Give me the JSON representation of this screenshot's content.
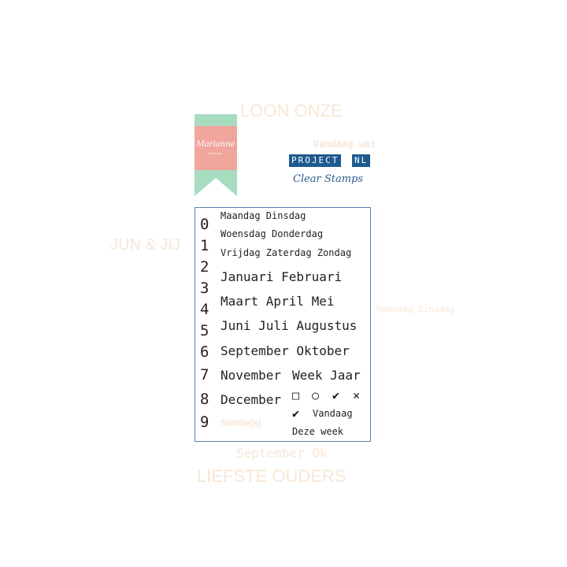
{
  "background_text": [
    "LOON ONZE",
    "LIEFSTE OUDERS",
    "Vandaag wat",
    "Notitie(s)",
    "September Ok",
    "Maandag Dinsdag",
    "JUN & JIJ"
  ],
  "logo": {
    "brand": "Marianne",
    "brand_sub": "design",
    "colors": {
      "ribbon": "#a8dcc1",
      "square": "#f0a69c"
    }
  },
  "product": {
    "line": "PROJECT",
    "region": "NL",
    "subtitle": "Clear Stamps",
    "accent": "#1e5a8f"
  },
  "digits": [
    "0",
    "1",
    "2",
    "3",
    "4",
    "5",
    "6",
    "7",
    "8",
    "9"
  ],
  "stamps": {
    "days": [
      "Maandag Dinsdag",
      "Woensdag Donderdag",
      "Vrijdag Zaterdag Zondag"
    ],
    "months": [
      "Januari Februari",
      "Maart April Mei",
      "Juni Juli Augustus",
      "September Oktober",
      "November",
      "December"
    ],
    "week_year": "Week Jaar",
    "symbols": [
      "□",
      "○",
      "✔",
      "✕"
    ],
    "today_check": "✔",
    "today": "Vandaag",
    "this_week": "Deze week"
  },
  "frame_color": "#5b7fb0"
}
